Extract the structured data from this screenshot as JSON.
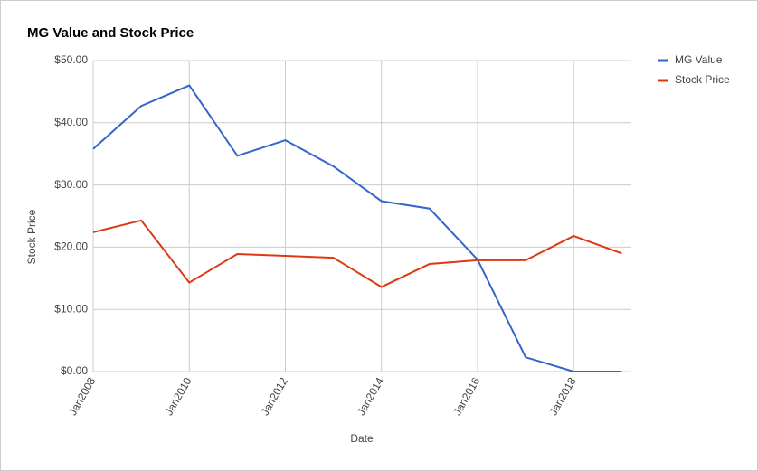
{
  "chart_data": {
    "type": "line",
    "title": "MG Value and Stock Price",
    "x_label": "Date",
    "y_label": "Stock Price",
    "x": [
      2008,
      2009,
      2010,
      2011,
      2012,
      2013,
      2014,
      2015,
      2016,
      2017,
      2018,
      2019
    ],
    "series": [
      {
        "name": "MG Value",
        "color": "#3366cc",
        "values": [
          35.8,
          42.7,
          46.0,
          34.7,
          37.2,
          33.0,
          27.4,
          26.2,
          18.0,
          2.3,
          0,
          0
        ]
      },
      {
        "name": "Stock Price",
        "color": "#dc3912",
        "values": [
          22.4,
          24.3,
          14.3,
          18.9,
          18.6,
          18.3,
          13.6,
          17.3,
          17.9,
          17.9,
          21.8,
          19.0
        ]
      }
    ],
    "xlim": [
      2008,
      2019.2
    ],
    "xticks": [
      {
        "value": 2008,
        "label": "Jan2008"
      },
      {
        "value": 2010,
        "label": "Jan2010"
      },
      {
        "value": 2012,
        "label": "Jan2012"
      },
      {
        "value": 2014,
        "label": "Jan2014"
      },
      {
        "value": 2016,
        "label": "Jan2016"
      },
      {
        "value": 2018,
        "label": "Jan2018"
      }
    ],
    "ylim": [
      0,
      50
    ],
    "yticks": [
      {
        "value": 0,
        "label": "$0.00"
      },
      {
        "value": 10,
        "label": "$10.00"
      },
      {
        "value": 20,
        "label": "$20.00"
      },
      {
        "value": 30,
        "label": "$30.00"
      },
      {
        "value": 40,
        "label": "$40.00"
      },
      {
        "value": 50,
        "label": "$50.00"
      }
    ],
    "grid": true,
    "legend": "right"
  }
}
